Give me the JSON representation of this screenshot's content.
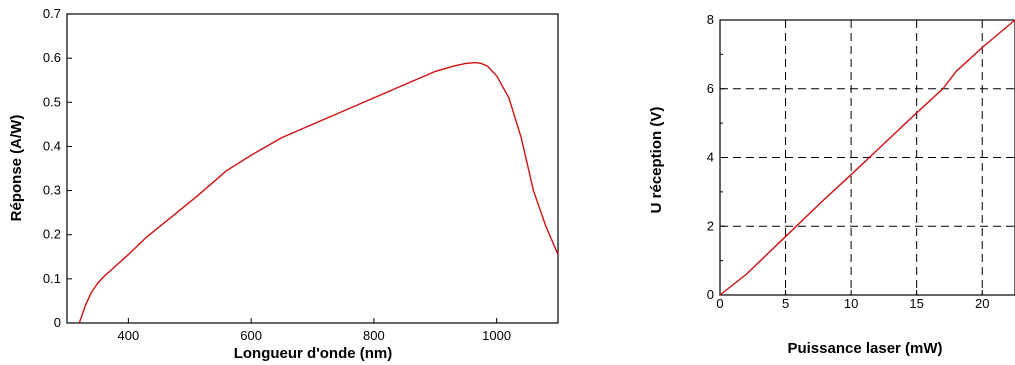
{
  "chart_data": [
    {
      "type": "line",
      "title": "",
      "xlabel": "Longueur d'onde (nm)",
      "ylabel": "Réponse (A/W)",
      "xlim": [
        300,
        1100
      ],
      "ylim": [
        0,
        0.7
      ],
      "xticks": [
        400,
        600,
        800,
        1000
      ],
      "yticks": [
        0,
        0.1,
        0.2,
        0.3,
        0.4,
        0.5,
        0.6,
        0.7
      ],
      "xtick_labels": [
        "400",
        "600",
        "800",
        "1000"
      ],
      "ytick_labels": [
        "0",
        "0.1",
        "0.2",
        "0.3",
        "0.4",
        "0.5",
        "0.6",
        "0.7"
      ],
      "grid": false,
      "series": [
        {
          "color": "#d01010",
          "x": [
            320,
            330,
            340,
            350,
            360,
            380,
            400,
            430,
            470,
            510,
            560,
            600,
            650,
            700,
            750,
            800,
            850,
            900,
            930,
            950,
            965,
            975,
            985,
            1000,
            1020,
            1040,
            1060,
            1080,
            1100
          ],
          "y": [
            0,
            0.04,
            0.07,
            0.09,
            0.105,
            0.13,
            0.155,
            0.195,
            0.24,
            0.285,
            0.345,
            0.38,
            0.42,
            0.45,
            0.48,
            0.51,
            0.54,
            0.57,
            0.582,
            0.588,
            0.59,
            0.588,
            0.582,
            0.56,
            0.51,
            0.42,
            0.3,
            0.22,
            0.155
          ]
        }
      ]
    },
    {
      "type": "line",
      "title": "",
      "xlabel": "Puissance laser (mW)",
      "ylabel": "U réception (V)",
      "xlim": [
        0,
        22.5
      ],
      "ylim": [
        0,
        8
      ],
      "xticks": [
        0,
        5,
        10,
        15,
        20
      ],
      "yticks": [
        0,
        2,
        4,
        6,
        8
      ],
      "xtick_labels": [
        "0",
        "5",
        "10",
        "15",
        "20"
      ],
      "ytick_labels": [
        "0",
        "2",
        "4",
        "6",
        "8"
      ],
      "grid": true,
      "series": [
        {
          "color": "#d01010",
          "x": [
            0,
            2,
            5,
            8,
            10,
            12.5,
            15,
            17,
            18,
            20,
            22.5
          ],
          "y": [
            0,
            0.6,
            1.7,
            2.8,
            3.5,
            4.4,
            5.3,
            6.0,
            6.5,
            7.2,
            8.0
          ]
        }
      ]
    }
  ]
}
